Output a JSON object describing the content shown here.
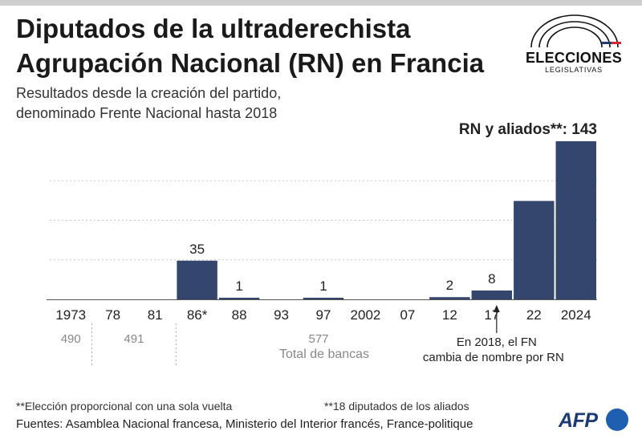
{
  "header": {
    "title_line1": "Diputados de la ultraderechista",
    "title_line2": "Agrupación Nacional (RN) en Francia",
    "subtitle_line1": "Resultados desde la creación del partido,",
    "subtitle_line2": "denominado Frente Nacional hasta 2018"
  },
  "logo": {
    "word": "ELECCIONES",
    "sub": "LEGISLATIVAS",
    "colors": [
      "#1f3b73",
      "#ffffff",
      "#d62631"
    ]
  },
  "chart_data": {
    "type": "bar",
    "title": "Diputados de la ultraderechista Agrupación Nacional (RN) en Francia",
    "categories": [
      "1973",
      "78",
      "81",
      "86*",
      "88",
      "93",
      "97",
      "2002",
      "07",
      "12",
      "17",
      "22",
      "2024"
    ],
    "values": [
      0,
      0,
      0,
      35,
      1,
      0,
      1,
      0,
      0,
      2,
      8,
      89,
      143
    ],
    "data_labels": [
      "",
      "",
      "",
      "35",
      "1",
      "",
      "1",
      "",
      "",
      "2",
      "8",
      "",
      "RN y aliados**: 143"
    ],
    "total_seats": [
      {
        "label": "490",
        "from": 0,
        "to": 0
      },
      {
        "label": "491",
        "from": 1,
        "to": 2
      },
      {
        "label": "577",
        "from": 3,
        "to": 12
      }
    ],
    "total_seats_label": "Total de bancas",
    "ylim": [
      0,
      143
    ],
    "bar_color": "#35466e",
    "annotation": {
      "line1": "En 2018, el FN",
      "line2": "cambia de nombre por RN"
    }
  },
  "notes": {
    "note1": "**Elección proporcional con una sola vuelta",
    "note2": "**18 diputados de los aliados"
  },
  "footer": {
    "sources": "Fuentes: Asamblea Nacional francesa, Ministerio del Interior francés, France-politique",
    "brand": "AFP"
  }
}
